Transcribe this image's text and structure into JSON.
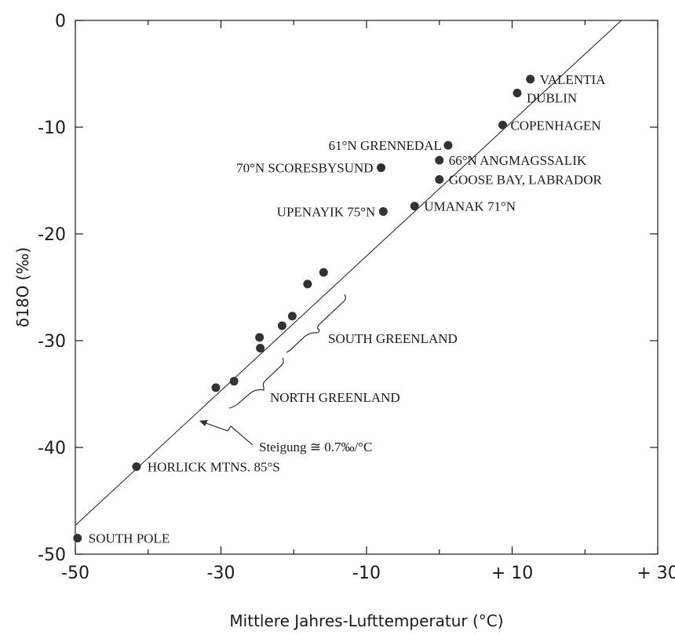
{
  "chart_data": {
    "type": "scatter",
    "xlabel": "Mittlere Jahres-Lufttemperatur (°C)",
    "ylabel": "δ18O (‰)",
    "xlim": [
      -50,
      30
    ],
    "ylim": [
      -50,
      0
    ],
    "x_ticks": [
      {
        "value": -50,
        "label": "-50"
      },
      {
        "value": -30,
        "label": "-30"
      },
      {
        "value": -10,
        "label": "-10"
      },
      {
        "value": 10,
        "label": "+ 10"
      },
      {
        "value": 30,
        "label": "+ 30"
      }
    ],
    "x_minor_ticks": [
      -40,
      -20,
      0,
      20
    ],
    "y_ticks": [
      {
        "value": 0,
        "label": "0"
      },
      {
        "value": -10,
        "label": "-10"
      },
      {
        "value": -20,
        "label": "-20"
      },
      {
        "value": -30,
        "label": "-30"
      },
      {
        "value": -40,
        "label": "-40"
      },
      {
        "value": -50,
        "label": "-50"
      }
    ],
    "points": [
      {
        "x": 12.5,
        "y": -5.5,
        "label": "VALENTIA"
      },
      {
        "x": 10.7,
        "y": -6.8,
        "label": "DUBLIN"
      },
      {
        "x": 8.7,
        "y": -9.8,
        "label": "COPENHAGEN"
      },
      {
        "x": 1.2,
        "y": -11.7,
        "label": "61°N GRENNEDAL"
      },
      {
        "x": -8,
        "y": -13.8,
        "label": "70°N SCORESBYSUND"
      },
      {
        "x": 0,
        "y": -13.1,
        "label": "66°N ANGMAGSSALIK"
      },
      {
        "x": 0,
        "y": -14.9,
        "label": "GOOSE BAY, LABRADOR"
      },
      {
        "x": -7.7,
        "y": -17.9,
        "label": "UPENAYIK 75°N"
      },
      {
        "x": -3.4,
        "y": -17.4,
        "label": "UMANAK 71°N"
      },
      {
        "x": -15.9,
        "y": -23.6,
        "label": ""
      },
      {
        "x": -18.1,
        "y": -24.7,
        "label": ""
      },
      {
        "x": -20.2,
        "y": -27.7,
        "label": ""
      },
      {
        "x": -21.6,
        "y": -28.6,
        "label": ""
      },
      {
        "x": -24.7,
        "y": -29.7,
        "label": ""
      },
      {
        "x": -24.6,
        "y": -30.7,
        "label": ""
      },
      {
        "x": -28.2,
        "y": -33.8,
        "label": ""
      },
      {
        "x": -30.7,
        "y": -34.4,
        "label": ""
      },
      {
        "x": -41.6,
        "y": -41.8,
        "label": "HORLICK MTNS. 85°S"
      },
      {
        "x": -49.7,
        "y": -48.5,
        "label": "SOUTH POLE"
      }
    ],
    "fit_line": {
      "x": [
        -50,
        25
      ],
      "y": [
        -47.3,
        0
      ]
    },
    "annotations": [
      {
        "text": "SOUTH GREENLAND"
      },
      {
        "text": "NORTH GREENLAND"
      },
      {
        "text": "Steigung ≅ 0.7‰/°C"
      }
    ],
    "grid": false,
    "legend": "none"
  }
}
